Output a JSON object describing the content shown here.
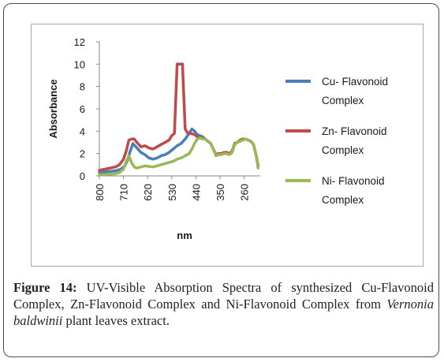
{
  "chart_data": {
    "type": "line",
    "xlabel": "nm",
    "ylabel": "Absorbance",
    "x_ticks": [
      800,
      710,
      620,
      530,
      440,
      350,
      260
    ],
    "y_ticks": [
      0,
      2,
      4,
      6,
      8,
      10,
      12
    ],
    "xlim": [
      800,
      200
    ],
    "ylim": [
      0,
      12
    ],
    "grid": false,
    "legend_position": "right",
    "series": [
      {
        "name": "Cu- Flavonoid Complex",
        "color": "#4a7ebb",
        "x": [
          800,
          780,
          760,
          740,
          720,
          705,
          695,
          685,
          675,
          660,
          645,
          630,
          615,
          600,
          585,
          570,
          555,
          540,
          525,
          510,
          495,
          480,
          465,
          455,
          445,
          435,
          425,
          415,
          405,
          395,
          385,
          375,
          365,
          355,
          345,
          335,
          325,
          315,
          305,
          295,
          285,
          275,
          265,
          255,
          245,
          235,
          225,
          215,
          208
        ],
        "y": [
          0.3,
          0.35,
          0.4,
          0.45,
          0.6,
          0.9,
          1.4,
          2.2,
          2.9,
          2.5,
          2.1,
          1.9,
          1.6,
          1.5,
          1.6,
          1.8,
          1.9,
          2.1,
          2.4,
          2.7,
          2.9,
          3.3,
          3.8,
          4.2,
          4.0,
          3.7,
          3.6,
          3.5,
          3.3,
          3.1,
          2.9,
          2.4,
          1.9,
          2.0,
          2.0,
          2.1,
          2.1,
          2.0,
          2.2,
          2.9,
          3.0,
          3.2,
          3.3,
          3.3,
          3.2,
          3.1,
          2.8,
          1.8,
          0.9
        ]
      },
      {
        "name": "Zn- Flavonoid Complex",
        "color": "#be4b48",
        "x": [
          800,
          780,
          760,
          740,
          725,
          710,
          700,
          690,
          680,
          670,
          660,
          645,
          630,
          615,
          600,
          585,
          570,
          555,
          540,
          530,
          520,
          510,
          500,
          490,
          480,
          470,
          460,
          445,
          435,
          425,
          415,
          405,
          395,
          385,
          375,
          365,
          355,
          345,
          335,
          325,
          315,
          305,
          295,
          285,
          275,
          265,
          255,
          245,
          235,
          225,
          215,
          208
        ],
        "y": [
          0.5,
          0.6,
          0.7,
          0.8,
          1.0,
          1.5,
          2.2,
          3.2,
          3.3,
          3.3,
          3.0,
          2.6,
          2.7,
          2.5,
          2.4,
          2.6,
          2.8,
          3.0,
          3.2,
          3.6,
          3.8,
          10.0,
          10.0,
          10.0,
          4.2,
          3.8,
          3.8,
          3.7,
          3.5,
          3.4,
          3.4,
          3.3,
          3.1,
          2.9,
          2.4,
          1.9,
          2.0,
          2.0,
          2.1,
          2.1,
          2.0,
          2.2,
          2.9,
          3.0,
          3.2,
          3.3,
          3.3,
          3.2,
          3.1,
          2.8,
          1.8,
          0.9
        ]
      },
      {
        "name": "Ni- Flavonoid Complex",
        "color": "#98b954",
        "x": [
          800,
          780,
          760,
          740,
          725,
          710,
          700,
          690,
          680,
          670,
          660,
          645,
          630,
          615,
          600,
          585,
          570,
          555,
          540,
          525,
          510,
          495,
          480,
          465,
          455,
          445,
          435,
          425,
          415,
          405,
          395,
          385,
          375,
          365,
          355,
          345,
          335,
          325,
          315,
          305,
          295,
          285,
          275,
          265,
          255,
          245,
          235,
          225,
          215,
          208
        ],
        "y": [
          0.1,
          0.12,
          0.15,
          0.2,
          0.3,
          0.6,
          1.3,
          1.8,
          1.2,
          0.8,
          0.7,
          0.8,
          0.9,
          0.85,
          0.8,
          0.9,
          1.0,
          1.1,
          1.2,
          1.3,
          1.5,
          1.6,
          1.8,
          2.0,
          2.4,
          2.9,
          3.3,
          3.4,
          3.3,
          3.3,
          3.1,
          2.9,
          2.4,
          1.8,
          1.9,
          1.9,
          2.0,
          2.0,
          1.9,
          2.1,
          2.8,
          3.0,
          3.1,
          3.2,
          3.3,
          3.2,
          3.1,
          2.8,
          1.8,
          0.7
        ]
      }
    ]
  },
  "caption": {
    "label": "Figure 14:",
    "text_1": " UV-Visible Absorption Spectra of synthesized Cu-Flavonoid Complex, Zn-Flavonoid Complex and Ni-Flavonoid Complex from ",
    "species": "Vernonia baldwinii",
    "text_2": " plant leaves extract."
  }
}
